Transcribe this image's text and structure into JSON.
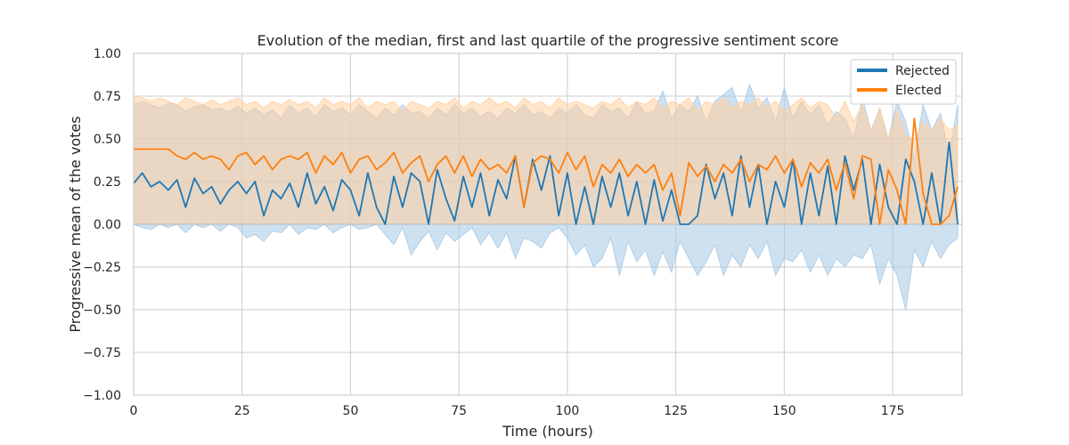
{
  "chart_data": {
    "type": "line",
    "title": "Evolution of the median, first and last quartile of the progressive sentiment score",
    "xlabel": "Time (hours)",
    "ylabel": "Progressive mean of the votes",
    "xlim": [
      0,
      191
    ],
    "ylim": [
      -1.0,
      1.0
    ],
    "xticks": [
      0,
      25,
      50,
      75,
      100,
      125,
      150,
      175
    ],
    "xtick_labels": [
      "0",
      "25",
      "50",
      "75",
      "100",
      "125",
      "150",
      "175"
    ],
    "yticks": [
      -1.0,
      -0.75,
      -0.5,
      -0.25,
      0.0,
      0.25,
      0.5,
      0.75,
      1.0
    ],
    "ytick_labels": [
      "−1.00",
      "−0.75",
      "−0.50",
      "−0.25",
      "0.00",
      "0.25",
      "0.50",
      "0.75",
      "1.00"
    ],
    "grid": true,
    "legend_position": "top-right",
    "series": [
      {
        "name": "Rejected",
        "color": "#1f77b4",
        "band_color": "#a6c8e4",
        "x": [
          0,
          2,
          4,
          6,
          8,
          10,
          12,
          14,
          16,
          18,
          20,
          22,
          24,
          26,
          28,
          30,
          32,
          34,
          36,
          38,
          40,
          42,
          44,
          46,
          48,
          50,
          52,
          54,
          56,
          58,
          60,
          62,
          64,
          66,
          68,
          70,
          72,
          74,
          76,
          78,
          80,
          82,
          84,
          86,
          88,
          90,
          92,
          94,
          96,
          98,
          100,
          102,
          104,
          106,
          108,
          110,
          112,
          114,
          116,
          118,
          120,
          122,
          124,
          126,
          128,
          130,
          132,
          134,
          136,
          138,
          140,
          142,
          144,
          146,
          148,
          150,
          152,
          154,
          156,
          158,
          160,
          162,
          164,
          166,
          168,
          170,
          172,
          174,
          176,
          178,
          180,
          182,
          184,
          186,
          188,
          190
        ],
        "median": [
          0.24,
          0.3,
          0.22,
          0.25,
          0.2,
          0.26,
          0.1,
          0.27,
          0.18,
          0.22,
          0.12,
          0.2,
          0.25,
          0.18,
          0.25,
          0.05,
          0.2,
          0.15,
          0.24,
          0.1,
          0.3,
          0.12,
          0.22,
          0.08,
          0.26,
          0.2,
          0.05,
          0.3,
          0.1,
          0.0,
          0.28,
          0.1,
          0.3,
          0.25,
          0.0,
          0.32,
          0.15,
          0.02,
          0.28,
          0.1,
          0.3,
          0.05,
          0.26,
          0.15,
          0.4,
          0.1,
          0.38,
          0.2,
          0.4,
          0.05,
          0.3,
          0.0,
          0.22,
          0.0,
          0.28,
          0.1,
          0.3,
          0.05,
          0.25,
          0.0,
          0.26,
          0.02,
          0.2,
          0.0,
          0.0,
          0.05,
          0.35,
          0.15,
          0.3,
          0.05,
          0.4,
          0.1,
          0.35,
          0.0,
          0.25,
          0.1,
          0.38,
          0.0,
          0.3,
          0.05,
          0.34,
          0.0,
          0.4,
          0.2,
          0.38,
          0.0,
          0.35,
          0.1,
          0.0,
          0.38,
          0.25,
          0.0,
          0.3,
          0.0,
          0.48,
          0.0
        ],
        "q1": [
          0.0,
          -0.02,
          -0.03,
          0.0,
          -0.02,
          0.0,
          -0.05,
          0.0,
          -0.02,
          0.0,
          -0.04,
          0.0,
          -0.02,
          -0.08,
          -0.06,
          -0.1,
          -0.04,
          -0.05,
          0.0,
          -0.06,
          -0.02,
          -0.03,
          0.0,
          -0.05,
          -0.02,
          0.0,
          -0.03,
          -0.02,
          0.0,
          -0.06,
          -0.12,
          -0.02,
          -0.18,
          -0.1,
          -0.04,
          -0.15,
          -0.05,
          -0.1,
          -0.06,
          -0.02,
          -0.12,
          -0.05,
          -0.14,
          -0.05,
          -0.2,
          -0.08,
          -0.1,
          -0.14,
          -0.05,
          -0.02,
          -0.08,
          -0.18,
          -0.12,
          -0.25,
          -0.2,
          -0.08,
          -0.3,
          -0.1,
          -0.22,
          -0.15,
          -0.3,
          -0.16,
          -0.28,
          -0.1,
          -0.2,
          -0.3,
          -0.22,
          -0.12,
          -0.3,
          -0.18,
          -0.25,
          -0.12,
          -0.2,
          -0.1,
          -0.3,
          -0.2,
          -0.22,
          -0.15,
          -0.28,
          -0.18,
          -0.3,
          -0.2,
          -0.25,
          -0.18,
          -0.2,
          -0.12,
          -0.35,
          -0.2,
          -0.3,
          -0.5,
          -0.15,
          -0.25,
          -0.1,
          -0.2,
          -0.12,
          -0.08
        ],
        "q3": [
          0.7,
          0.72,
          0.7,
          0.68,
          0.71,
          0.7,
          0.66,
          0.69,
          0.7,
          0.67,
          0.68,
          0.66,
          0.69,
          0.65,
          0.68,
          0.64,
          0.67,
          0.62,
          0.7,
          0.65,
          0.68,
          0.63,
          0.7,
          0.66,
          0.68,
          0.64,
          0.7,
          0.66,
          0.62,
          0.68,
          0.64,
          0.7,
          0.65,
          0.66,
          0.62,
          0.68,
          0.64,
          0.7,
          0.65,
          0.68,
          0.63,
          0.66,
          0.62,
          0.68,
          0.65,
          0.7,
          0.64,
          0.66,
          0.62,
          0.68,
          0.65,
          0.7,
          0.64,
          0.62,
          0.7,
          0.66,
          0.68,
          0.62,
          0.72,
          0.65,
          0.66,
          0.78,
          0.62,
          0.7,
          0.66,
          0.75,
          0.6,
          0.72,
          0.76,
          0.8,
          0.65,
          0.82,
          0.68,
          0.74,
          0.6,
          0.8,
          0.62,
          0.72,
          0.64,
          0.7,
          0.58,
          0.66,
          0.62,
          0.5,
          0.74,
          0.55,
          0.68,
          0.5,
          0.72,
          0.6,
          0.38,
          0.7,
          0.55,
          0.65,
          0.4,
          0.7
        ]
      },
      {
        "name": "Elected",
        "color": "#ff7f0e",
        "band_color": "#ffcf9e",
        "x": [
          0,
          2,
          4,
          6,
          8,
          10,
          12,
          14,
          16,
          18,
          20,
          22,
          24,
          26,
          28,
          30,
          32,
          34,
          36,
          38,
          40,
          42,
          44,
          46,
          48,
          50,
          52,
          54,
          56,
          58,
          60,
          62,
          64,
          66,
          68,
          70,
          72,
          74,
          76,
          78,
          80,
          82,
          84,
          86,
          88,
          90,
          92,
          94,
          96,
          98,
          100,
          102,
          104,
          106,
          108,
          110,
          112,
          114,
          116,
          118,
          120,
          122,
          124,
          126,
          128,
          130,
          132,
          134,
          136,
          138,
          140,
          142,
          144,
          146,
          148,
          150,
          152,
          154,
          156,
          158,
          160,
          162,
          164,
          166,
          168,
          170,
          172,
          174,
          176,
          178,
          180,
          182,
          184,
          186,
          188,
          190
        ],
        "median": [
          0.44,
          0.44,
          0.44,
          0.44,
          0.44,
          0.4,
          0.38,
          0.42,
          0.38,
          0.4,
          0.38,
          0.32,
          0.4,
          0.42,
          0.35,
          0.4,
          0.32,
          0.38,
          0.4,
          0.38,
          0.42,
          0.3,
          0.4,
          0.35,
          0.42,
          0.3,
          0.38,
          0.4,
          0.32,
          0.36,
          0.42,
          0.3,
          0.36,
          0.4,
          0.25,
          0.35,
          0.4,
          0.3,
          0.4,
          0.28,
          0.38,
          0.32,
          0.35,
          0.3,
          0.4,
          0.1,
          0.36,
          0.4,
          0.38,
          0.3,
          0.42,
          0.32,
          0.4,
          0.22,
          0.35,
          0.3,
          0.38,
          0.28,
          0.35,
          0.3,
          0.35,
          0.2,
          0.3,
          0.05,
          0.36,
          0.28,
          0.34,
          0.25,
          0.35,
          0.3,
          0.38,
          0.25,
          0.35,
          0.32,
          0.4,
          0.3,
          0.38,
          0.22,
          0.36,
          0.3,
          0.38,
          0.2,
          0.36,
          0.15,
          0.4,
          0.38,
          0.0,
          0.32,
          0.2,
          0.0,
          0.62,
          0.18,
          0.0,
          0.0,
          0.05,
          0.22
        ],
        "q1": [
          0.0,
          0.0,
          0.0,
          0.0,
          0.0,
          0.0,
          0.0,
          0.0,
          0.0,
          0.0,
          0.0,
          0.0,
          0.0,
          0.0,
          0.0,
          0.0,
          0.0,
          0.0,
          0.0,
          0.0,
          0.0,
          0.0,
          0.0,
          0.0,
          0.0,
          0.0,
          0.0,
          0.0,
          0.0,
          0.0,
          0.0,
          0.0,
          0.0,
          0.0,
          0.0,
          0.0,
          0.0,
          0.0,
          0.0,
          0.0,
          0.0,
          0.0,
          0.0,
          0.0,
          0.0,
          0.0,
          0.0,
          0.0,
          0.0,
          0.0,
          0.0,
          0.0,
          0.0,
          0.0,
          0.0,
          0.0,
          0.0,
          0.0,
          0.0,
          0.0,
          0.0,
          0.0,
          0.0,
          0.0,
          0.0,
          0.0,
          0.0,
          0.0,
          0.0,
          0.0,
          0.0,
          0.0,
          0.0,
          0.0,
          0.0,
          0.0,
          0.0,
          0.0,
          0.0,
          0.0,
          0.0,
          0.0,
          0.0,
          0.0,
          0.0,
          0.0,
          0.0,
          0.0,
          0.0,
          0.0,
          0.0,
          0.0,
          0.0,
          0.0,
          0.0,
          0.0
        ],
        "q3": [
          0.75,
          0.74,
          0.72,
          0.74,
          0.72,
          0.7,
          0.74,
          0.72,
          0.7,
          0.73,
          0.7,
          0.72,
          0.74,
          0.7,
          0.72,
          0.68,
          0.72,
          0.7,
          0.73,
          0.7,
          0.72,
          0.68,
          0.74,
          0.7,
          0.72,
          0.7,
          0.74,
          0.68,
          0.72,
          0.7,
          0.72,
          0.66,
          0.72,
          0.7,
          0.68,
          0.72,
          0.7,
          0.74,
          0.68,
          0.72,
          0.7,
          0.74,
          0.7,
          0.72,
          0.68,
          0.74,
          0.7,
          0.72,
          0.68,
          0.74,
          0.7,
          0.72,
          0.7,
          0.68,
          0.72,
          0.7,
          0.74,
          0.68,
          0.72,
          0.7,
          0.74,
          0.68,
          0.72,
          0.7,
          0.74,
          0.66,
          0.72,
          0.7,
          0.74,
          0.68,
          0.72,
          0.7,
          0.74,
          0.68,
          0.72,
          0.66,
          0.7,
          0.74,
          0.68,
          0.72,
          0.7,
          0.62,
          0.72,
          0.6,
          0.7,
          0.55,
          0.68,
          0.5,
          0.66,
          0.52,
          0.5,
          0.6,
          0.55,
          0.62,
          0.55,
          0.58
        ]
      }
    ]
  }
}
